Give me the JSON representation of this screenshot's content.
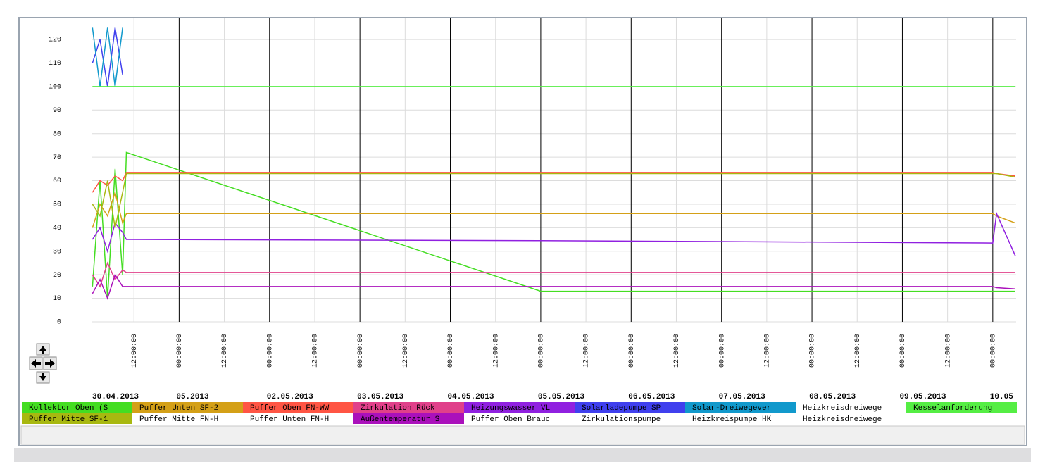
{
  "chart_data": {
    "type": "line",
    "x": [
      1,
      3,
      5,
      7,
      9,
      10,
      120,
      240,
      241,
      246
    ],
    "xlim": [
      0.75,
      246.2
    ],
    "xticks": [
      {
        "value": 12,
        "label": "12:00:00"
      },
      {
        "value": 24,
        "label": "00:00:00"
      },
      {
        "value": 36,
        "label": "12:00:00"
      },
      {
        "value": 48,
        "label": "00:00:00"
      },
      {
        "value": 60,
        "label": "12:00:00"
      },
      {
        "value": 72,
        "label": "00:00:00"
      },
      {
        "value": 84,
        "label": "12:00:00"
      },
      {
        "value": 96,
        "label": "00:00:00"
      },
      {
        "value": 108,
        "label": "12:00:00"
      },
      {
        "value": 120,
        "label": "00:00:00"
      },
      {
        "value": 132,
        "label": "12:00:00"
      },
      {
        "value": 144,
        "label": "00:00:00"
      },
      {
        "value": 156,
        "label": "12:00:00"
      },
      {
        "value": 168,
        "label": "00:00:00"
      },
      {
        "value": 180,
        "label": "12:00:00"
      },
      {
        "value": 192,
        "label": "00:00:00"
      },
      {
        "value": 204,
        "label": "12:00:00"
      },
      {
        "value": 216,
        "label": "00:00:00"
      },
      {
        "value": 228,
        "label": "12:00:00"
      },
      {
        "value": 240,
        "label": "00:00:00"
      }
    ],
    "date_labels": [
      {
        "value": 0,
        "label": "30.04.2013"
      },
      {
        "value": 24,
        "label": "05.2013"
      },
      {
        "value": 48,
        "label": "02.05.2013"
      },
      {
        "value": 72,
        "label": "03.05.2013"
      },
      {
        "value": 96,
        "label": "04.05.2013"
      },
      {
        "value": 120,
        "label": "05.05.2013"
      },
      {
        "value": 144,
        "label": "06.05.2013"
      },
      {
        "value": 168,
        "label": "07.05.2013"
      },
      {
        "value": 192,
        "label": "08.05.2013"
      },
      {
        "value": 216,
        "label": "09.05.2013"
      },
      {
        "value": 240,
        "label": "10.05"
      }
    ],
    "ylim": [
      0,
      129
    ],
    "yticks": [
      0,
      10,
      20,
      30,
      40,
      50,
      60,
      70,
      80,
      90,
      100,
      110,
      120
    ],
    "grid": true,
    "series": [
      {
        "name": "Kollektor Oben (S",
        "color": "#44dd22",
        "values": [
          15,
          60,
          10,
          65,
          20,
          72,
          13,
          13,
          13,
          13
        ]
      },
      {
        "name": "Puffer Unten SF-2",
        "color": "#d4a017",
        "values": [
          40,
          50,
          45,
          55,
          42,
          46,
          46,
          46,
          45,
          42
        ]
      },
      {
        "name": "Puffer Oben FN-WW",
        "color": "#ff5544",
        "values": [
          55,
          60,
          58,
          62,
          60,
          63.5,
          63.5,
          63.5,
          63,
          62
        ]
      },
      {
        "name": "Zirkulation Rück",
        "color": "#e0408a",
        "values": [
          20,
          15,
          25,
          18,
          22,
          21,
          21,
          21,
          21,
          21
        ]
      },
      {
        "name": "Heizungswasser VL",
        "color": "#9020e0",
        "values": [
          35,
          40,
          30,
          42,
          38,
          35,
          34.5,
          33.5,
          46,
          28
        ]
      },
      {
        "name": "Solarladepumpe SP",
        "color": "#4040ee",
        "values": [
          110,
          120,
          100,
          125,
          105,
          null,
          null,
          null,
          null,
          null
        ]
      },
      {
        "name": "Solar-Dreiwegever",
        "color": "#1199cc",
        "values": [
          125,
          100,
          125,
          100,
          125,
          null,
          null,
          null,
          null,
          null
        ]
      },
      {
        "name": "Heizkreisdreiwege",
        "color": "#ffffff",
        "values": [
          null,
          null,
          null,
          null,
          null,
          null,
          null,
          null,
          null,
          null
        ]
      },
      {
        "name": "Kesselanforderung",
        "color": "#55ee44",
        "values": [
          100,
          100,
          100,
          100,
          100,
          100,
          100,
          100,
          100,
          100
        ]
      },
      {
        "name": "Puffer Mitte SF-1",
        "color": "#a8b810",
        "values": [
          50,
          45,
          60,
          40,
          55,
          63,
          63,
          63,
          63,
          61.5
        ]
      },
      {
        "name": "Puffer Mitte FN-H",
        "color": "#ffffff",
        "values": [
          null,
          null,
          null,
          null,
          null,
          null,
          null,
          null,
          null,
          null
        ]
      },
      {
        "name": "Puffer Unten FN-H",
        "color": "#ffffff",
        "values": [
          null,
          null,
          null,
          null,
          null,
          null,
          null,
          null,
          null,
          null
        ]
      },
      {
        "name": "Außentemperatur S",
        "color": "#aa10bb",
        "values": [
          12,
          18,
          10,
          20,
          15,
          15,
          15,
          15,
          14.5,
          14
        ]
      },
      {
        "name": "Puffer Oben Brauc",
        "color": "#ffffff",
        "values": [
          null,
          null,
          null,
          null,
          null,
          null,
          null,
          null,
          null,
          null
        ]
      },
      {
        "name": "Zirkulationspumpe",
        "color": "#ffffff",
        "values": [
          null,
          null,
          null,
          null,
          null,
          null,
          null,
          null,
          null,
          null
        ]
      },
      {
        "name": "Heizkreispumpe HK",
        "color": "#ffffff",
        "values": [
          null,
          null,
          null,
          null,
          null,
          null,
          null,
          null,
          null,
          null
        ]
      },
      {
        "name": "Heizkreisdreiwege",
        "color": "#ffffff",
        "values": [
          null,
          null,
          null,
          null,
          null,
          null,
          null,
          null,
          null,
          null
        ]
      }
    ]
  }
}
